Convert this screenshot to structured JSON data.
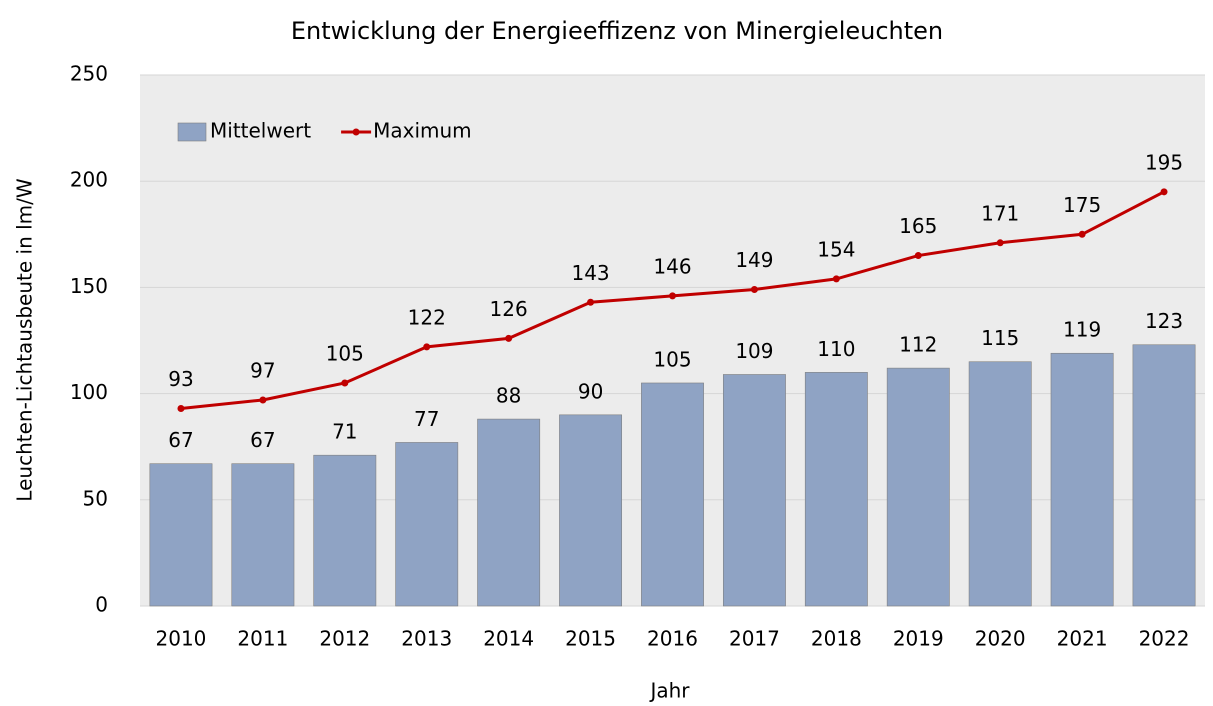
{
  "chart_data": {
    "type": "bar",
    "title": "Entwicklung der Energieeffizenz von Minergieleuchten",
    "x_label": "Jahr",
    "y_label": "Leuchten-Lichtausbeute in lm/W",
    "categories": [
      "2010",
      "2011",
      "2012",
      "2013",
      "2014",
      "2015",
      "2016",
      "2017",
      "2018",
      "2019",
      "2020",
      "2021",
      "2022"
    ],
    "series": [
      {
        "name": "Mittelwert",
        "type": "bar",
        "color": "#8fa3c4",
        "values": [
          67,
          67,
          71,
          77,
          88,
          90,
          105,
          109,
          110,
          112,
          115,
          119,
          123
        ]
      },
      {
        "name": "Maximum",
        "type": "line",
        "color": "#c00000",
        "values": [
          93,
          97,
          105,
          122,
          126,
          143,
          146,
          149,
          154,
          165,
          171,
          175,
          195
        ]
      }
    ],
    "ylim": [
      0,
      250
    ],
    "yticks": [
      0,
      50,
      100,
      150,
      200,
      250
    ],
    "grid": true,
    "legend": "top-left"
  }
}
